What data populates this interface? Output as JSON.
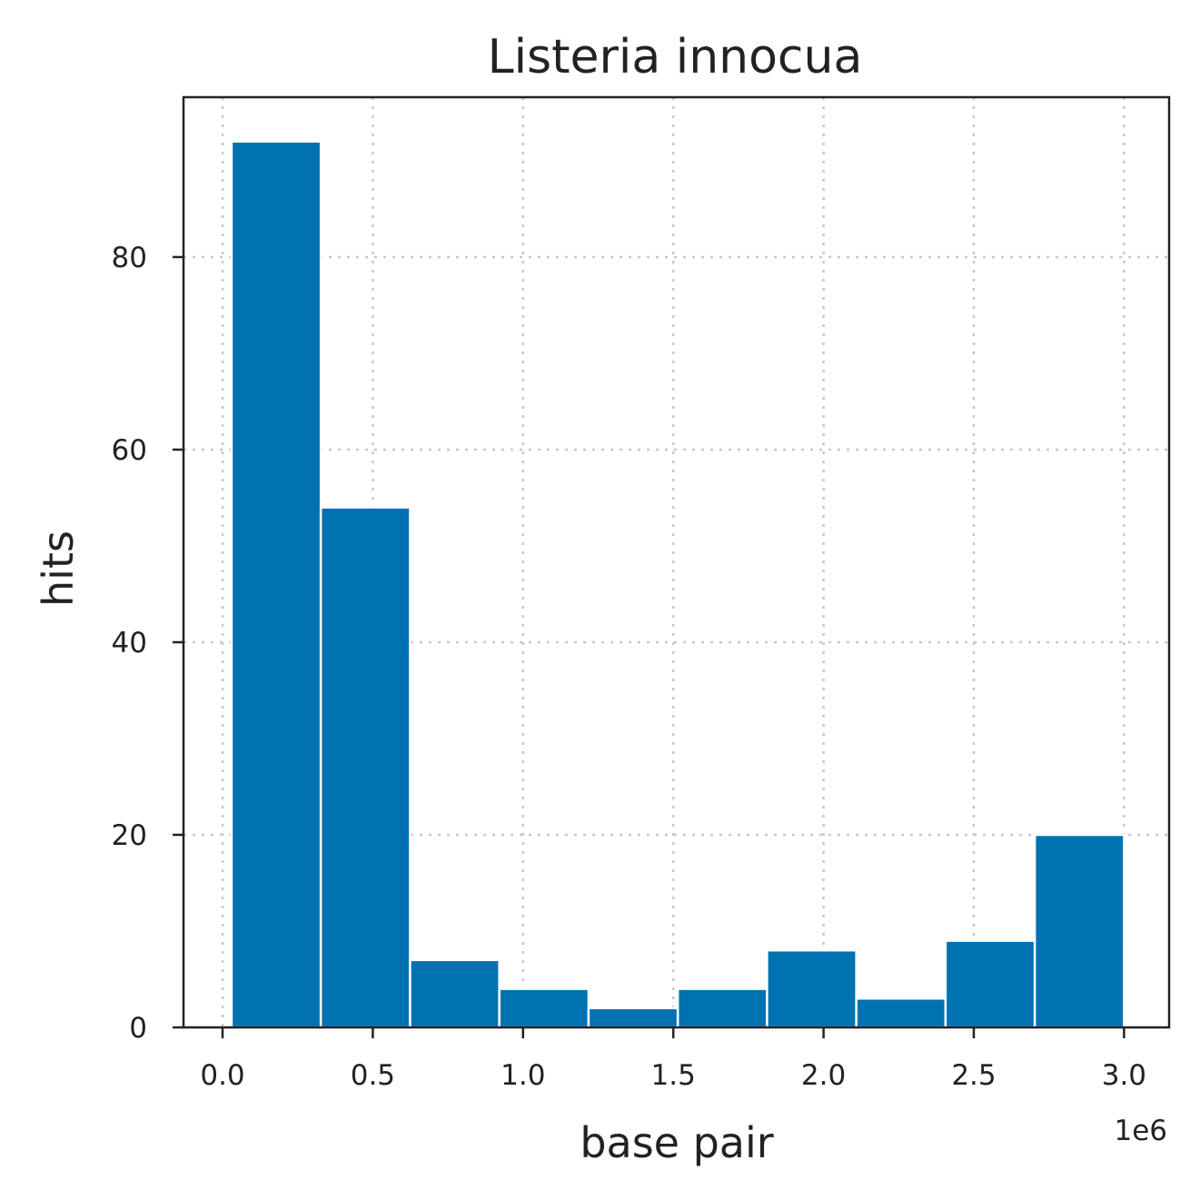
{
  "chart_data": {
    "type": "bar",
    "title": "Listeria innocua",
    "xlabel": "base pair",
    "ylabel": "hits",
    "x_offset_label": "1e6",
    "bar_color": "#0072b2",
    "bin_edges": [
      0.03,
      0.327,
      0.624,
      0.921,
      1.218,
      1.515,
      1.812,
      2.109,
      2.406,
      2.703,
      3.0
    ],
    "values": [
      92,
      54,
      7,
      4,
      2,
      4,
      8,
      3,
      9,
      20
    ],
    "xlim": [
      -0.13,
      3.15
    ],
    "ylim": [
      0,
      96.6
    ],
    "xticks": [
      0.0,
      0.5,
      1.0,
      1.5,
      2.0,
      2.5,
      3.0
    ],
    "xtick_labels": [
      "0.0",
      "0.5",
      "1.0",
      "1.5",
      "2.0",
      "2.5",
      "3.0"
    ],
    "yticks": [
      0,
      20,
      40,
      60,
      80
    ],
    "ytick_labels": [
      "0",
      "20",
      "40",
      "60",
      "80"
    ],
    "grid": true,
    "grid_style": "dotted"
  }
}
